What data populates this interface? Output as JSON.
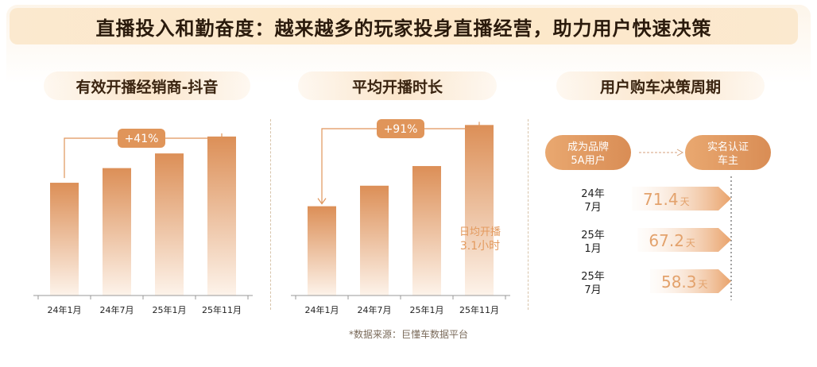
{
  "title": "直播投入和勤奋度：越来越多的玩家投身直播经营，助力用户快速决策",
  "source": "*数据来源：巨懂车数据平台",
  "colors": {
    "accent": "#e0955a",
    "bar_top": "#dc8f57",
    "bar_bottom": "#fdf3ea",
    "text_orange": "#e39a5e"
  },
  "panel1": {
    "heading": "有效开播经销商-抖音",
    "badge": "+41%"
  },
  "panel2": {
    "heading": "平均开播时长",
    "badge": "+91%",
    "note_line1": "日均开播",
    "note_line2": "3.1小时"
  },
  "panel3": {
    "heading": "用户购车决策周期",
    "flow_start_l1": "成为品牌",
    "flow_start_l2": "5A用户",
    "flow_end_l1": "实名认证",
    "flow_end_l2": "车主",
    "rows": [
      {
        "label_l1": "24年",
        "label_l2": "7月",
        "value": "71.4",
        "unit": "天"
      },
      {
        "label_l1": "25年",
        "label_l2": "1月",
        "value": "67.2",
        "unit": "天"
      },
      {
        "label_l1": "25年",
        "label_l2": "7月",
        "value": "58.3",
        "unit": "天"
      }
    ]
  },
  "chart_data": [
    {
      "type": "bar",
      "title": "有效开播经销商-抖音",
      "categories": [
        "24年1月",
        "24年7月",
        "25年1月",
        "25年11月"
      ],
      "values": [
        100,
        113,
        126,
        141
      ],
      "annotation": "+41%",
      "ylim": [
        0,
        155
      ]
    },
    {
      "type": "bar",
      "title": "平均开播时长",
      "categories": [
        "24年1月",
        "24年7月",
        "25年1月",
        "25年11月"
      ],
      "values": [
        100,
        123,
        145,
        191
      ],
      "annotation": "+91%",
      "note": "日均开播 3.1小时",
      "ylim": [
        0,
        210
      ]
    },
    {
      "type": "bar",
      "title": "用户购车决策周期",
      "categories": [
        "24年7月",
        "25年1月",
        "25年7月"
      ],
      "values": [
        71.4,
        67.2,
        58.3
      ],
      "unit": "天",
      "orientation": "horizontal"
    }
  ]
}
